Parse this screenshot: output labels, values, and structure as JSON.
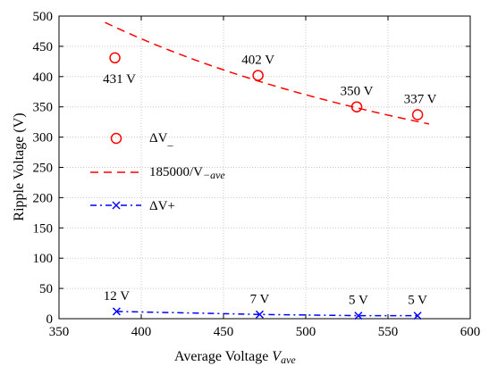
{
  "chart_data": {
    "type": "scatter",
    "xlabel_main": "Average Voltage ",
    "xlabel_var": "V",
    "xlabel_sub": "ave",
    "ylabel": "Ripple Voltage (V)",
    "xlim": [
      350,
      600
    ],
    "ylim": [
      0,
      500
    ],
    "x_ticks": [
      350,
      400,
      450,
      500,
      550,
      600
    ],
    "y_ticks": [
      0,
      50,
      100,
      150,
      200,
      250,
      300,
      350,
      400,
      450,
      500
    ],
    "grid": true,
    "legend_position": "middle-left",
    "colors": {
      "red": "#ff0000",
      "blue": "#0000ff",
      "axis": "#000000",
      "grid": "#c8c8c8"
    },
    "series": [
      {
        "key": "dV_minus",
        "legend_main": "ΔV",
        "legend_sub": "_",
        "marker": "circle",
        "color": "#ff0000",
        "points": [
          {
            "x": 384,
            "y": 431,
            "label": "431 V"
          },
          {
            "x": 471,
            "y": 402,
            "label": "402 V"
          },
          {
            "x": 531,
            "y": 350,
            "label": "350 V"
          },
          {
            "x": 568,
            "y": 337,
            "label": "337 V"
          }
        ]
      },
      {
        "key": "fit",
        "legend_main": "185000/V",
        "legend_sub": "−ave",
        "style": "dashed",
        "color": "#ff0000",
        "x": [
          378,
          575
        ],
        "formula_numerator": 185000
      },
      {
        "key": "dV_plus",
        "legend_main": "ΔV+",
        "marker": "x",
        "style": "dash-dot",
        "color": "#0000ff",
        "points": [
          {
            "x": 385,
            "y": 12,
            "label": "12 V"
          },
          {
            "x": 472,
            "y": 7,
            "label": "7 V"
          },
          {
            "x": 532,
            "y": 5,
            "label": "5 V"
          },
          {
            "x": 568,
            "y": 5,
            "label": "5 V"
          }
        ]
      }
    ]
  }
}
